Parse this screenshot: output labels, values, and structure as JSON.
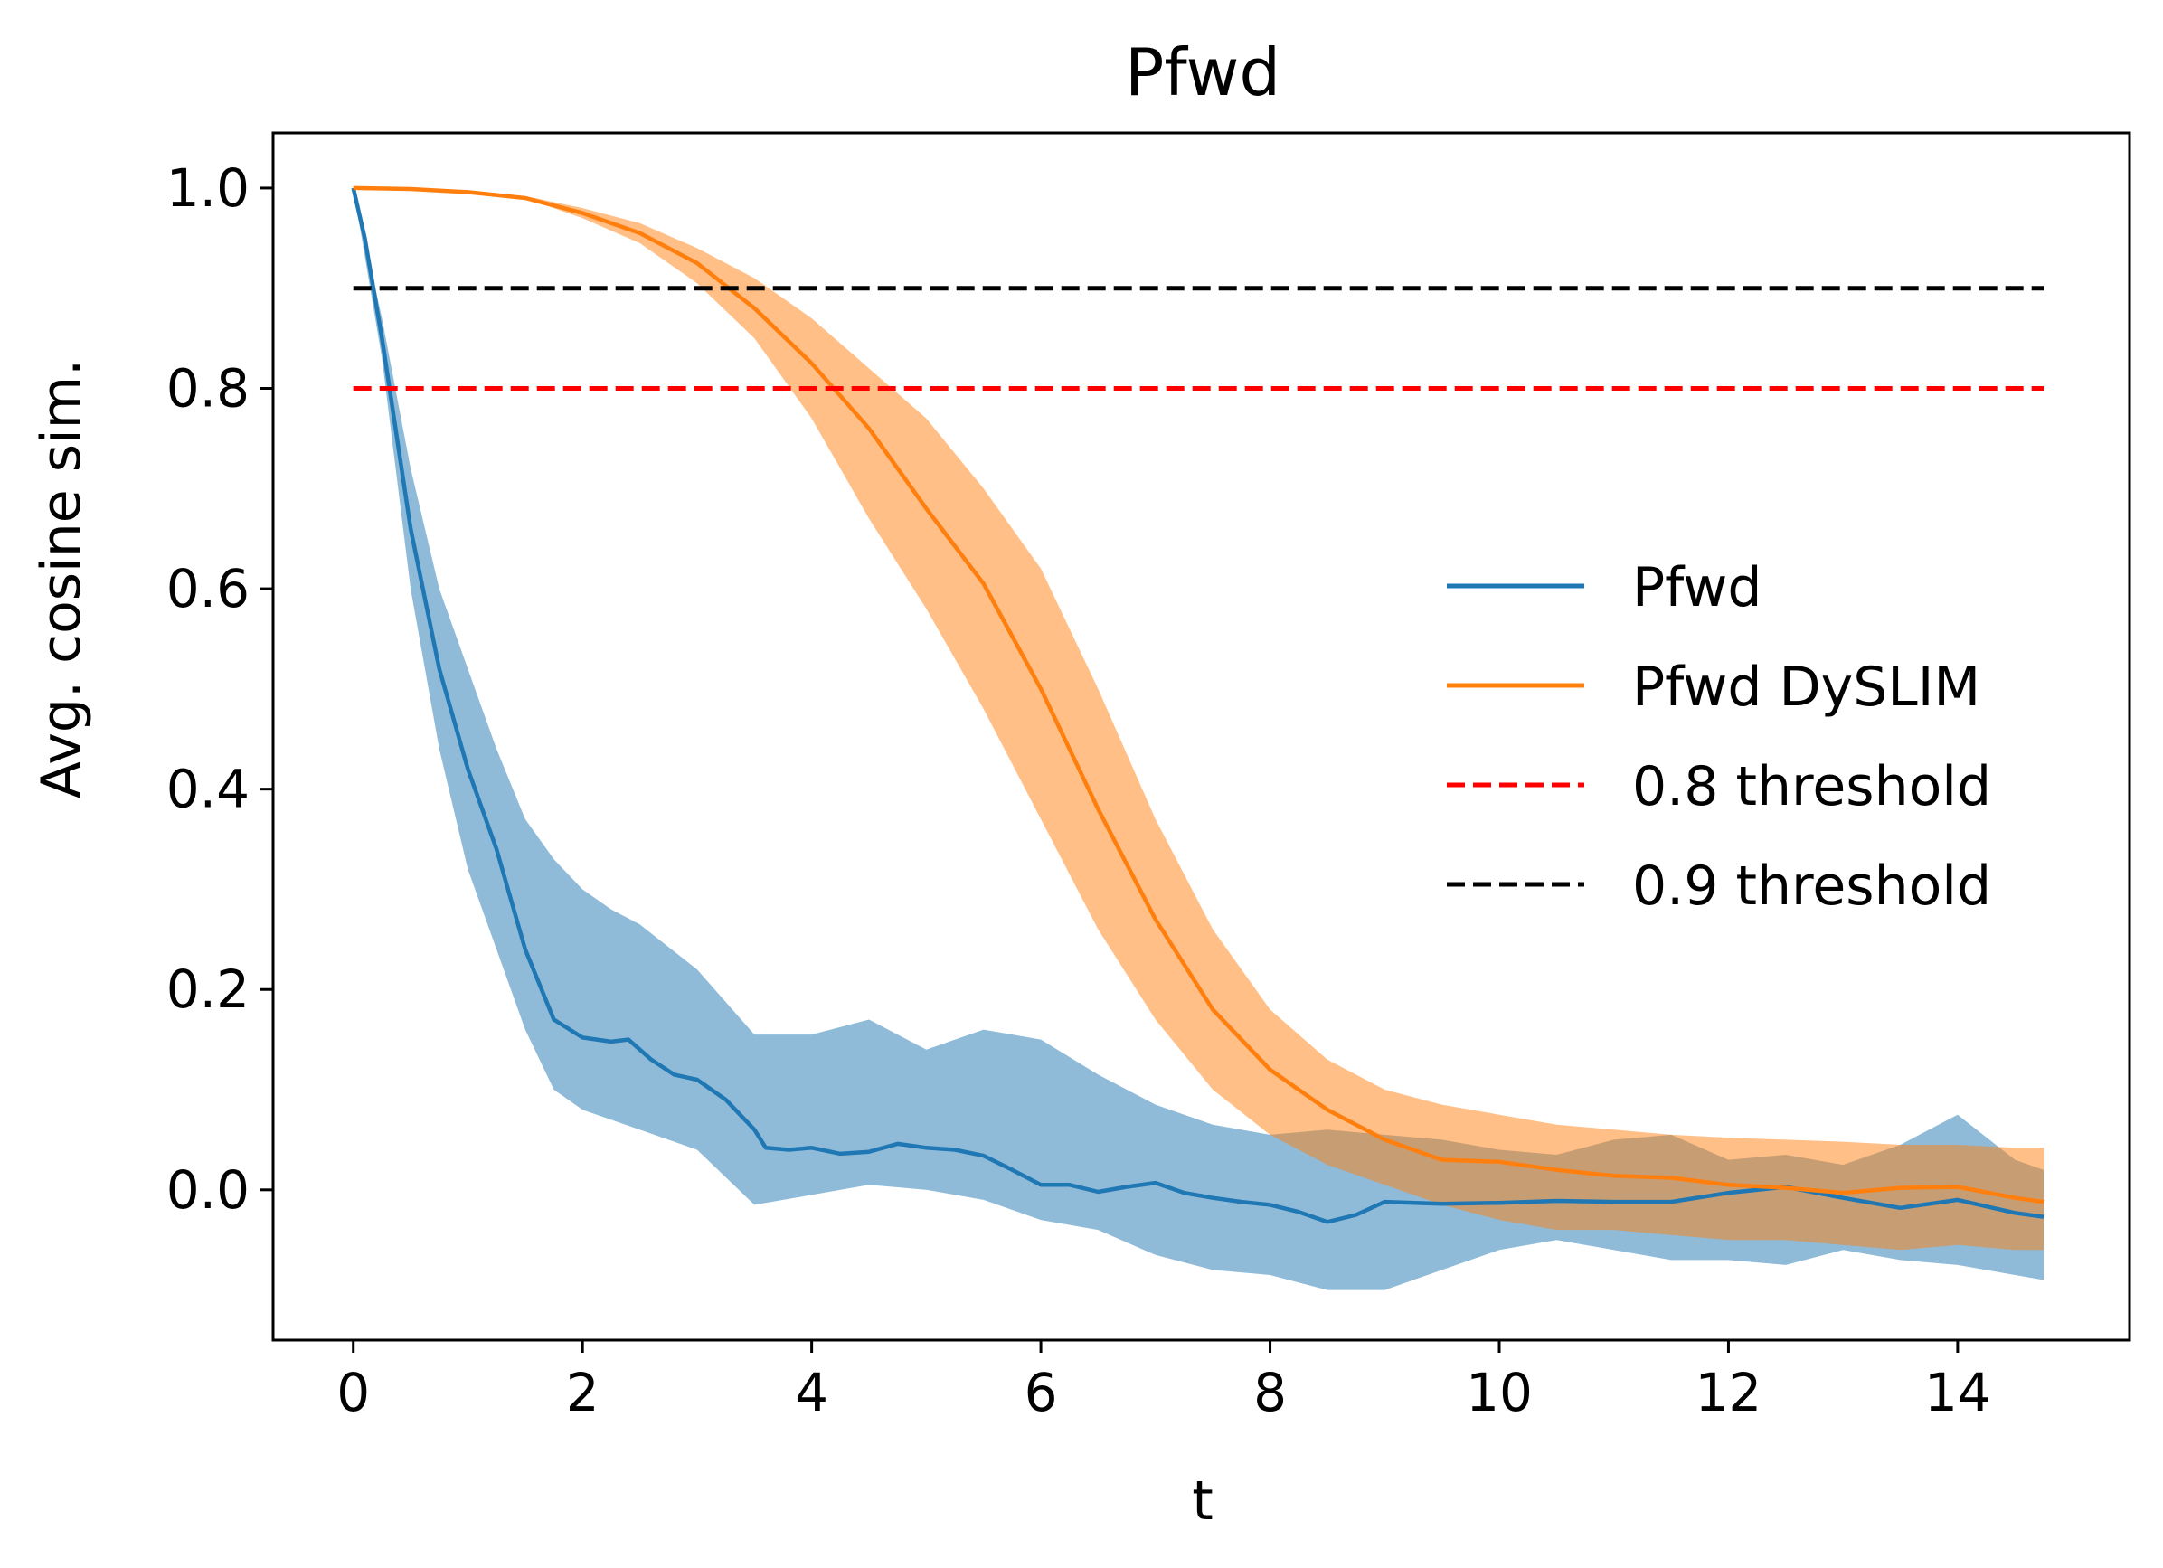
{
  "chart_data": {
    "type": "line",
    "title": "Pfwd",
    "xlabel": "t",
    "ylabel": "Avg. cosine sim.",
    "xlim": [
      -0.7,
      15.5
    ],
    "ylim": [
      -0.15,
      1.055
    ],
    "xticks": [
      0,
      2,
      4,
      6,
      8,
      10,
      12,
      14
    ],
    "yticks": [
      0.0,
      0.2,
      0.4,
      0.6,
      0.8,
      1.0
    ],
    "xtick_labels": [
      "0",
      "2",
      "4",
      "6",
      "8",
      "10",
      "12",
      "14"
    ],
    "ytick_labels": [
      "0.0",
      "0.2",
      "0.4",
      "0.6",
      "0.8",
      "1.0"
    ],
    "grid": false,
    "legend_position": "center-right",
    "series": [
      {
        "name": "Pfwd",
        "color": "#1f77b4",
        "style": "solid",
        "band": true,
        "points": [
          [
            0,
            1.0
          ],
          [
            0.1,
            0.95
          ],
          [
            0.25,
            0.85
          ],
          [
            0.5,
            0.66
          ],
          [
            0.75,
            0.52
          ],
          [
            1.0,
            0.42
          ],
          [
            1.25,
            0.34
          ],
          [
            1.5,
            0.24
          ],
          [
            1.75,
            0.17
          ],
          [
            2.0,
            0.152
          ],
          [
            2.25,
            0.148
          ],
          [
            2.4,
            0.15
          ],
          [
            2.6,
            0.13
          ],
          [
            2.8,
            0.115
          ],
          [
            3.0,
            0.11
          ],
          [
            3.25,
            0.09
          ],
          [
            3.5,
            0.06
          ],
          [
            3.6,
            0.042
          ],
          [
            3.8,
            0.04
          ],
          [
            4.0,
            0.042
          ],
          [
            4.25,
            0.036
          ],
          [
            4.5,
            0.038
          ],
          [
            4.75,
            0.046
          ],
          [
            5.0,
            0.042
          ],
          [
            5.25,
            0.04
          ],
          [
            5.5,
            0.034
          ],
          [
            5.75,
            0.02
          ],
          [
            6.0,
            0.005
          ],
          [
            6.25,
            0.005
          ],
          [
            6.5,
            -0.002
          ],
          [
            6.75,
            0.003
          ],
          [
            7.0,
            0.007
          ],
          [
            7.25,
            -0.003
          ],
          [
            7.5,
            -0.008
          ],
          [
            7.75,
            -0.012
          ],
          [
            8.0,
            -0.015
          ],
          [
            8.25,
            -0.022
          ],
          [
            8.5,
            -0.032
          ],
          [
            8.75,
            -0.025
          ],
          [
            9.0,
            -0.012
          ],
          [
            9.5,
            -0.014
          ],
          [
            10.0,
            -0.013
          ],
          [
            10.5,
            -0.011
          ],
          [
            11.0,
            -0.012
          ],
          [
            11.5,
            -0.012
          ],
          [
            12.0,
            -0.003
          ],
          [
            12.5,
            0.003
          ],
          [
            13.0,
            -0.008
          ],
          [
            13.5,
            -0.018
          ],
          [
            14.0,
            -0.01
          ],
          [
            14.5,
            -0.023
          ],
          [
            14.75,
            -0.027
          ]
        ],
        "lower": [
          [
            0,
            1.0
          ],
          [
            0.25,
            0.83
          ],
          [
            0.5,
            0.6
          ],
          [
            0.75,
            0.44
          ],
          [
            1.0,
            0.32
          ],
          [
            1.25,
            0.24
          ],
          [
            1.5,
            0.16
          ],
          [
            1.75,
            0.1
          ],
          [
            2.0,
            0.08
          ],
          [
            2.25,
            0.07
          ],
          [
            2.5,
            0.06
          ],
          [
            3.0,
            0.04
          ],
          [
            3.5,
            -0.015
          ],
          [
            4.0,
            -0.005
          ],
          [
            4.5,
            0.005
          ],
          [
            5.0,
            0.0
          ],
          [
            5.5,
            -0.01
          ],
          [
            6.0,
            -0.03
          ],
          [
            6.5,
            -0.04
          ],
          [
            7.0,
            -0.065
          ],
          [
            7.5,
            -0.08
          ],
          [
            8.0,
            -0.085
          ],
          [
            8.5,
            -0.1
          ],
          [
            9.0,
            -0.1
          ],
          [
            9.5,
            -0.08
          ],
          [
            10.0,
            -0.06
          ],
          [
            10.5,
            -0.05
          ],
          [
            11.0,
            -0.06
          ],
          [
            11.5,
            -0.07
          ],
          [
            12.0,
            -0.07
          ],
          [
            12.5,
            -0.075
          ],
          [
            13.0,
            -0.06
          ],
          [
            13.5,
            -0.07
          ],
          [
            14.0,
            -0.075
          ],
          [
            14.5,
            -0.085
          ],
          [
            14.75,
            -0.09
          ]
        ],
        "upper": [
          [
            0,
            1.0
          ],
          [
            0.25,
            0.87
          ],
          [
            0.5,
            0.72
          ],
          [
            0.75,
            0.6
          ],
          [
            1.0,
            0.52
          ],
          [
            1.25,
            0.44
          ],
          [
            1.5,
            0.37
          ],
          [
            1.75,
            0.33
          ],
          [
            2.0,
            0.3
          ],
          [
            2.25,
            0.28
          ],
          [
            2.5,
            0.265
          ],
          [
            3.0,
            0.22
          ],
          [
            3.5,
            0.155
          ],
          [
            4.0,
            0.155
          ],
          [
            4.5,
            0.17
          ],
          [
            5.0,
            0.14
          ],
          [
            5.5,
            0.16
          ],
          [
            6.0,
            0.15
          ],
          [
            6.5,
            0.115
          ],
          [
            7.0,
            0.085
          ],
          [
            7.5,
            0.065
          ],
          [
            8.0,
            0.055
          ],
          [
            8.5,
            0.06
          ],
          [
            9.0,
            0.055
          ],
          [
            9.5,
            0.05
          ],
          [
            10.0,
            0.04
          ],
          [
            10.5,
            0.035
          ],
          [
            11.0,
            0.05
          ],
          [
            11.5,
            0.055
          ],
          [
            12.0,
            0.03
          ],
          [
            12.5,
            0.035
          ],
          [
            13.0,
            0.025
          ],
          [
            13.5,
            0.045
          ],
          [
            14.0,
            0.075
          ],
          [
            14.5,
            0.03
          ],
          [
            14.75,
            0.02
          ]
        ]
      },
      {
        "name": "Pfwd DySLIM",
        "color": "#ff7f0e",
        "style": "solid",
        "band": true,
        "points": [
          [
            0,
            1.0
          ],
          [
            0.5,
            0.999
          ],
          [
            1.0,
            0.996
          ],
          [
            1.5,
            0.99
          ],
          [
            2.0,
            0.975
          ],
          [
            2.5,
            0.955
          ],
          [
            3.0,
            0.925
          ],
          [
            3.5,
            0.88
          ],
          [
            4.0,
            0.825
          ],
          [
            4.5,
            0.76
          ],
          [
            5.0,
            0.68
          ],
          [
            5.5,
            0.605
          ],
          [
            6.0,
            0.5
          ],
          [
            6.5,
            0.38
          ],
          [
            7.0,
            0.27
          ],
          [
            7.5,
            0.18
          ],
          [
            8.0,
            0.12
          ],
          [
            8.5,
            0.08
          ],
          [
            9.0,
            0.05
          ],
          [
            9.5,
            0.03
          ],
          [
            10.0,
            0.028
          ],
          [
            10.5,
            0.02
          ],
          [
            11.0,
            0.014
          ],
          [
            11.5,
            0.012
          ],
          [
            12.0,
            0.005
          ],
          [
            12.5,
            0.002
          ],
          [
            13.0,
            -0.003
          ],
          [
            13.5,
            0.002
          ],
          [
            14.0,
            0.003
          ],
          [
            14.5,
            -0.008
          ],
          [
            14.75,
            -0.012
          ]
        ],
        "lower": [
          [
            0,
            1.0
          ],
          [
            0.5,
            0.999
          ],
          [
            1.0,
            0.996
          ],
          [
            1.5,
            0.99
          ],
          [
            2.0,
            0.97
          ],
          [
            2.5,
            0.945
          ],
          [
            3.0,
            0.905
          ],
          [
            3.5,
            0.85
          ],
          [
            4.0,
            0.77
          ],
          [
            4.5,
            0.67
          ],
          [
            5.0,
            0.58
          ],
          [
            5.5,
            0.48
          ],
          [
            6.0,
            0.37
          ],
          [
            6.5,
            0.26
          ],
          [
            7.0,
            0.17
          ],
          [
            7.5,
            0.1
          ],
          [
            8.0,
            0.055
          ],
          [
            8.5,
            0.025
          ],
          [
            9.0,
            0.005
          ],
          [
            9.5,
            -0.015
          ],
          [
            10.0,
            -0.03
          ],
          [
            10.5,
            -0.04
          ],
          [
            11.0,
            -0.04
          ],
          [
            11.5,
            -0.045
          ],
          [
            12.0,
            -0.05
          ],
          [
            12.5,
            -0.05
          ],
          [
            13.0,
            -0.055
          ],
          [
            13.5,
            -0.06
          ],
          [
            14.0,
            -0.055
          ],
          [
            14.5,
            -0.06
          ],
          [
            14.75,
            -0.06
          ]
        ],
        "upper": [
          [
            0,
            1.0
          ],
          [
            0.5,
            0.999
          ],
          [
            1.0,
            0.996
          ],
          [
            1.5,
            0.992
          ],
          [
            2.0,
            0.98
          ],
          [
            2.5,
            0.965
          ],
          [
            3.0,
            0.94
          ],
          [
            3.5,
            0.91
          ],
          [
            4.0,
            0.87
          ],
          [
            4.5,
            0.82
          ],
          [
            5.0,
            0.77
          ],
          [
            5.5,
            0.7
          ],
          [
            6.0,
            0.62
          ],
          [
            6.5,
            0.5
          ],
          [
            7.0,
            0.37
          ],
          [
            7.5,
            0.26
          ],
          [
            8.0,
            0.18
          ],
          [
            8.5,
            0.13
          ],
          [
            9.0,
            0.1
          ],
          [
            9.5,
            0.085
          ],
          [
            10.0,
            0.075
          ],
          [
            10.5,
            0.065
          ],
          [
            11.0,
            0.06
          ],
          [
            11.5,
            0.055
          ],
          [
            12.0,
            0.052
          ],
          [
            12.5,
            0.05
          ],
          [
            13.0,
            0.048
          ],
          [
            13.5,
            0.045
          ],
          [
            14.0,
            0.045
          ],
          [
            14.5,
            0.042
          ],
          [
            14.75,
            0.042
          ]
        ]
      },
      {
        "name": "0.8 threshold",
        "color": "#ff0000",
        "style": "dashed",
        "points": [
          [
            0,
            0.8
          ],
          [
            14.75,
            0.8
          ]
        ]
      },
      {
        "name": "0.9 threshold",
        "color": "#000000",
        "style": "dashed",
        "points": [
          [
            0,
            0.9
          ],
          [
            14.75,
            0.9
          ]
        ]
      }
    ]
  }
}
